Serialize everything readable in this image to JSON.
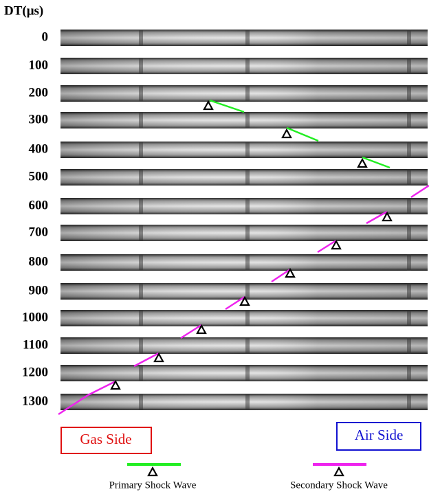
{
  "header": {
    "title": "DT(μs)"
  },
  "rows": [
    "0",
    "100",
    "200",
    "300",
    "400",
    "500",
    "600",
    "700",
    "800",
    "900",
    "1000",
    "1100",
    "1200",
    "1300"
  ],
  "sides": {
    "gas": "Gas Side",
    "air": "Air Side"
  },
  "legend": {
    "primary": "Primary Shock Wave",
    "secondary": "Secondary Shock Wave"
  }
}
